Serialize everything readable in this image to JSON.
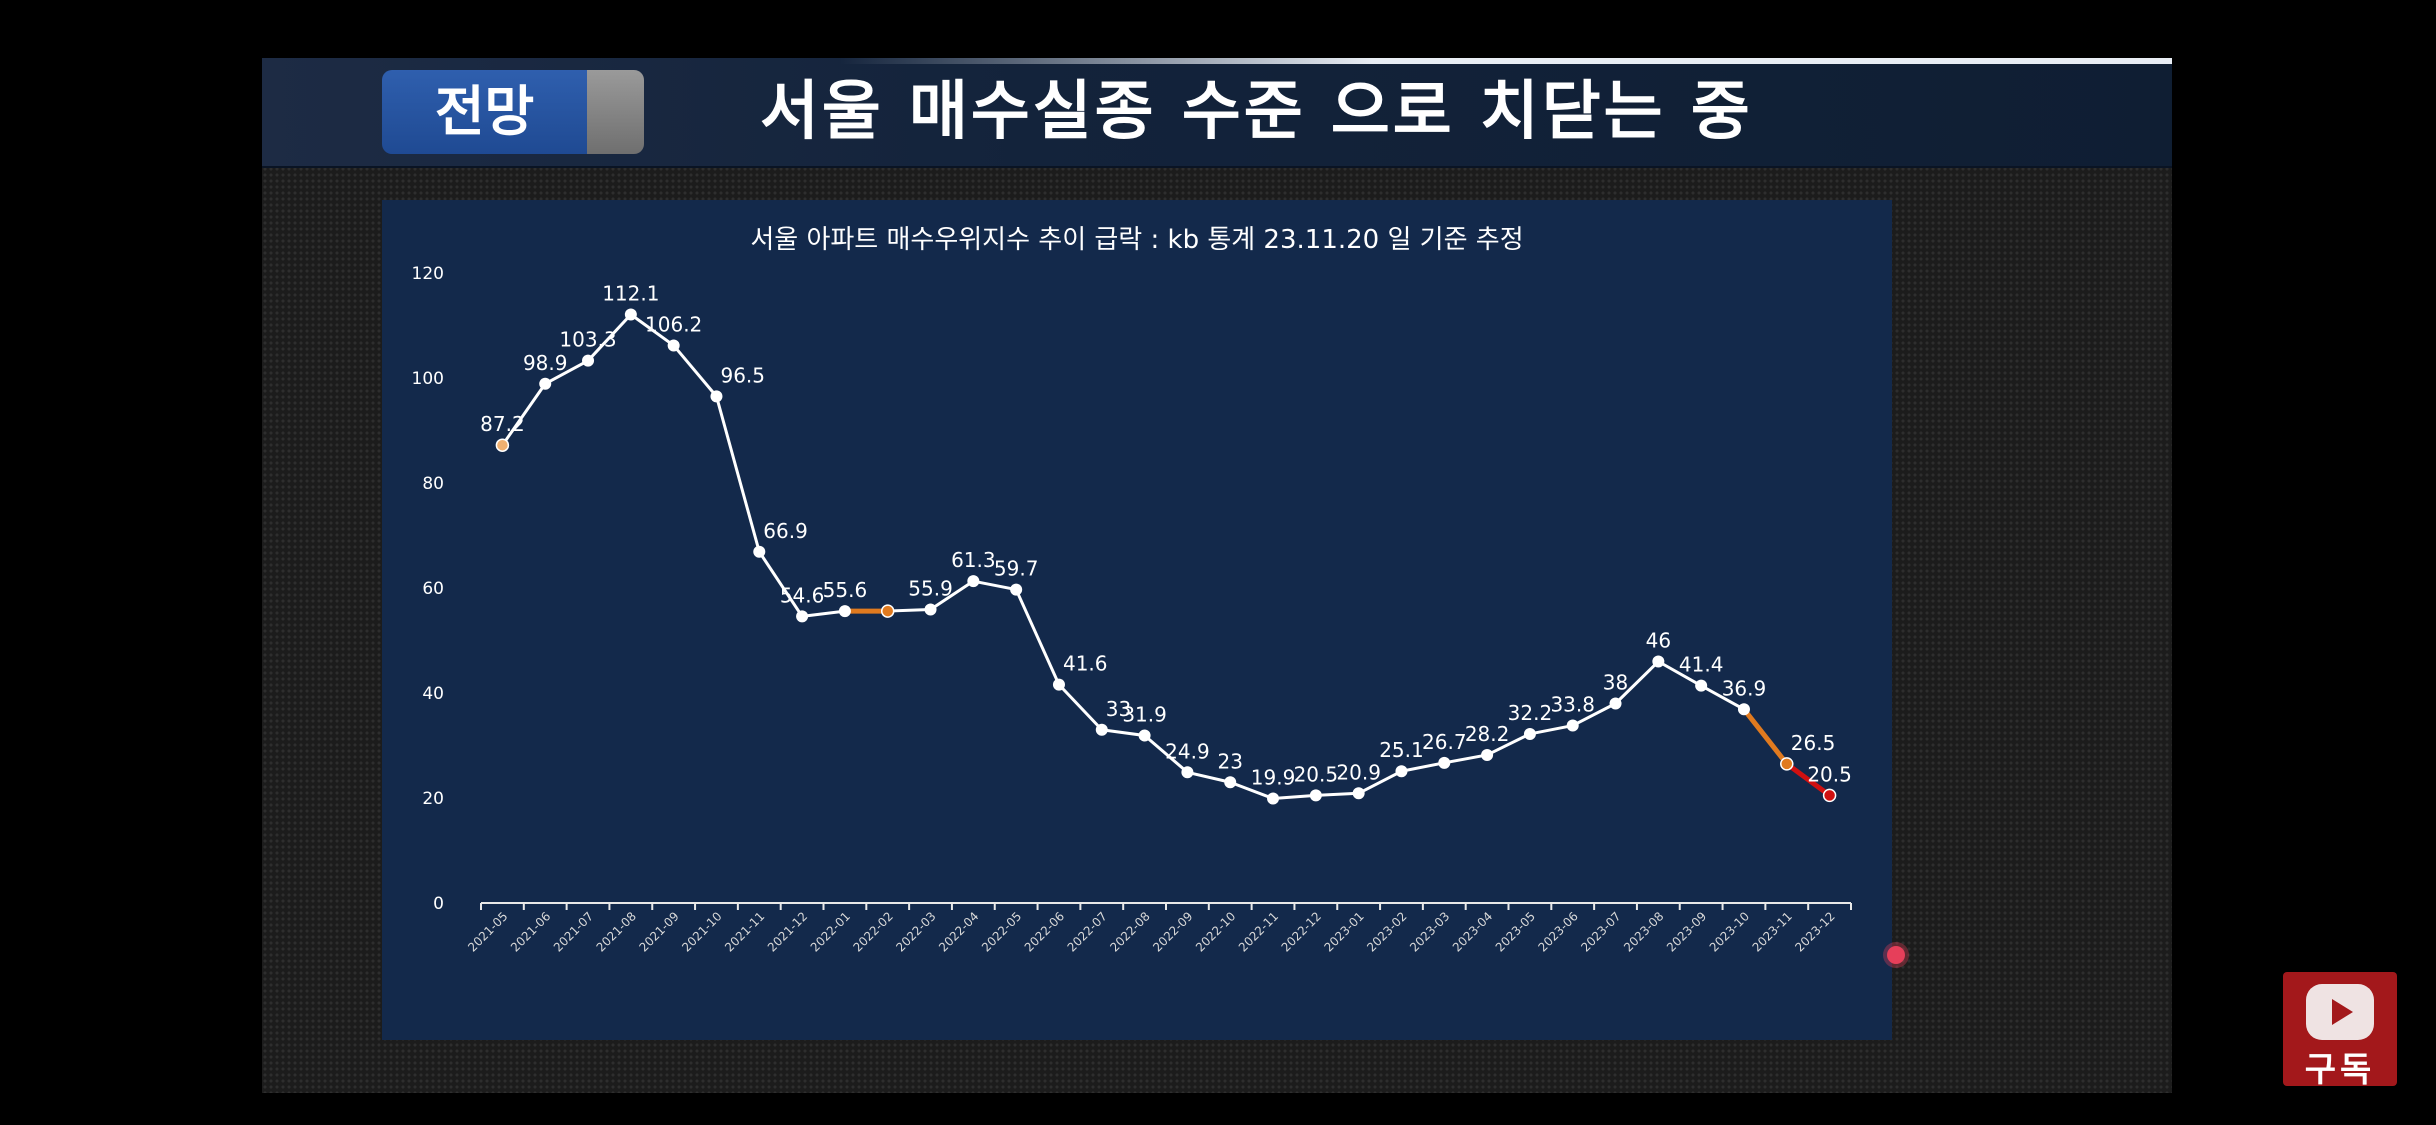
{
  "header": {
    "tag_label": "전망",
    "headline": "서울 매수실종 수준 으로 치닫는 중"
  },
  "subscribe": {
    "label": "구독",
    "icon": "youtube-play-icon"
  },
  "colors": {
    "panel_bg": "#13294b",
    "line_main": "#ffffff",
    "line_highlight_orange": "#e07a1f",
    "line_highlight_red": "#d01010",
    "tag_blue": "#2456a3",
    "subscribe_red": "#a3181b"
  },
  "chart_data": {
    "type": "line",
    "title": "서울 아파트 매수우위지수 추이 급락 : kb 통계 23.11.20 일 기준 추정",
    "xlabel": "",
    "ylabel": "",
    "ylim": [
      0,
      120
    ],
    "yticks": [
      0,
      20,
      40,
      60,
      80,
      100,
      120
    ],
    "grid": false,
    "legend": "none",
    "categories": [
      "2021-05",
      "2021-06",
      "2021-07",
      "2021-08",
      "2021-09",
      "2021-10",
      "2021-11",
      "2021-12",
      "2022-01",
      "2022-02",
      "2022-03",
      "2022-04",
      "2022-05",
      "2022-06",
      "2022-07",
      "2022-08",
      "2022-09",
      "2022-10",
      "2022-11",
      "2022-12",
      "2023-01",
      "2023-02",
      "2023-03",
      "2023-04",
      "2023-05",
      "2023-06",
      "2023-07",
      "2023-08",
      "2023-09",
      "2023-10",
      "2023-11",
      "2023-12"
    ],
    "values": [
      87.2,
      98.9,
      103.3,
      112.1,
      106.2,
      96.5,
      66.9,
      54.6,
      55.6,
      55.6,
      55.9,
      61.3,
      59.7,
      41.6,
      33,
      31.9,
      24.9,
      23,
      19.9,
      20.5,
      20.9,
      25.1,
      26.7,
      28.2,
      32.2,
      33.8,
      38,
      46,
      41.4,
      36.9,
      26.5,
      20.5
    ],
    "data_labels": [
      "87.2",
      "98.9",
      "103.3",
      "112.1",
      "106.2",
      "96.5",
      "66.9",
      "54.6",
      "55.6",
      "",
      "55.9",
      "61.3",
      "59.7",
      "41.6",
      "33",
      "31.9",
      "24.9",
      "23",
      "19.9",
      "20.5",
      "20.9",
      "25.1",
      "26.7",
      "28.2",
      "32.2",
      "33.8",
      "38",
      "46",
      "41.4",
      "36.9",
      "26.5",
      "20.5"
    ],
    "highlight_segments": [
      {
        "from": "2022-01",
        "to": "2022-02",
        "color": "#e07a1f"
      },
      {
        "from": "2023-10",
        "to": "2023-11",
        "color": "#e07a1f"
      },
      {
        "from": "2023-11",
        "to": "2023-12",
        "color": "#d01010"
      }
    ],
    "highlight_points": [
      {
        "category": "2021-05",
        "color": "#f0b070"
      },
      {
        "category": "2022-02",
        "color": "#e07a1f"
      },
      {
        "category": "2023-11",
        "color": "#e07a1f"
      },
      {
        "category": "2023-12",
        "color": "#d01010"
      }
    ]
  }
}
